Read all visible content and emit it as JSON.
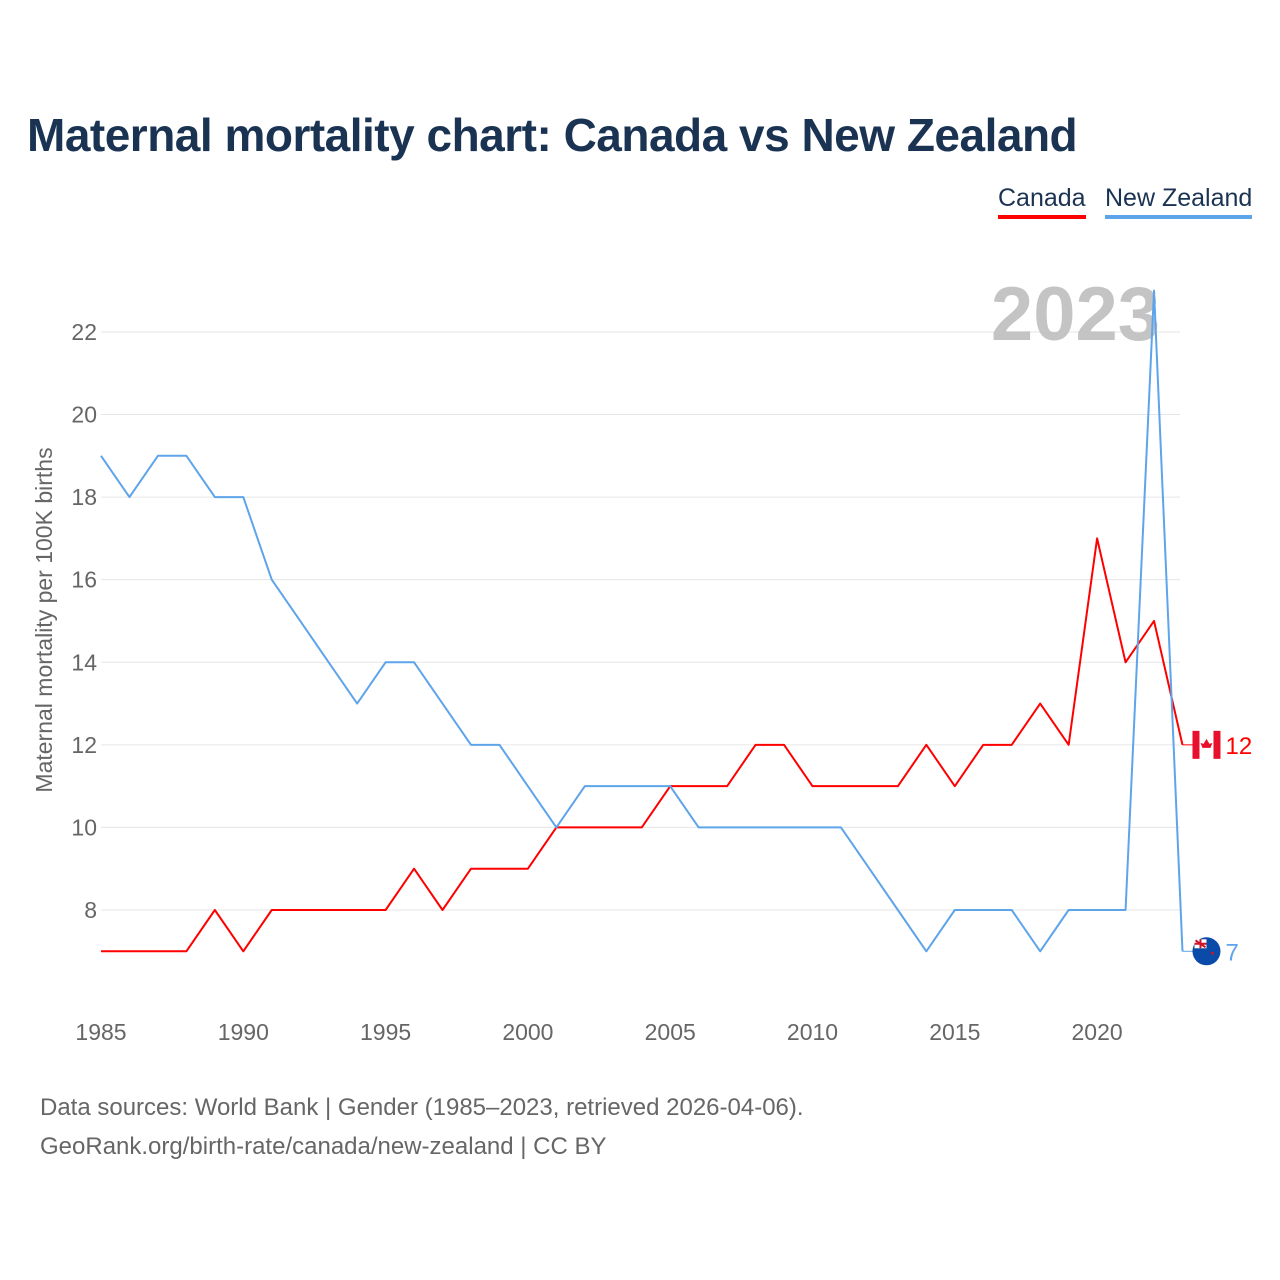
{
  "chart_data": {
    "type": "line",
    "title": "Maternal mortality chart: Canada vs New Zealand",
    "xlabel": "",
    "ylabel": "Maternal mortality per 100K births",
    "year_label": "2023",
    "xlim": [
      1985,
      2023
    ],
    "ylim": [
      6,
      23.5
    ],
    "x_ticks": [
      1985,
      1990,
      1995,
      2000,
      2005,
      2010,
      2015,
      2020
    ],
    "y_ticks": [
      8,
      10,
      12,
      14,
      16,
      18,
      20,
      22
    ],
    "grid": true,
    "legend_position": "top-right",
    "x": [
      1985,
      1986,
      1987,
      1988,
      1989,
      1990,
      1991,
      1992,
      1993,
      1994,
      1995,
      1996,
      1997,
      1998,
      1999,
      2000,
      2001,
      2002,
      2003,
      2004,
      2005,
      2006,
      2007,
      2008,
      2009,
      2010,
      2011,
      2012,
      2013,
      2014,
      2015,
      2016,
      2017,
      2018,
      2019,
      2020,
      2021,
      2022,
      2023
    ],
    "series": [
      {
        "name": "Canada",
        "color": "#ff0000",
        "end_label": "12",
        "values": [
          7,
          7,
          7,
          7,
          8,
          7,
          8,
          8,
          8,
          8,
          8,
          9,
          8,
          9,
          9,
          9,
          10,
          10,
          10,
          10,
          11,
          11,
          11,
          12,
          12,
          11,
          11,
          11,
          11,
          12,
          11,
          12,
          12,
          13,
          12,
          17,
          14,
          15,
          12
        ]
      },
      {
        "name": "New Zealand",
        "color": "#5ea4ea",
        "end_label": "7",
        "values": [
          19,
          18,
          19,
          19,
          18,
          18,
          16,
          15,
          14,
          13,
          14,
          14,
          13,
          12,
          12,
          11,
          10,
          11,
          11,
          11,
          11,
          10,
          10,
          10,
          10,
          10,
          10,
          9,
          8,
          7,
          8,
          8,
          8,
          7,
          8,
          8,
          8,
          23,
          7
        ]
      }
    ]
  },
  "source_line1": "Data sources: World Bank | Gender (1985–2023, retrieved 2026-04-06).",
  "source_line2": "GeoRank.org/birth-rate/canada/new-zealand | CC BY"
}
